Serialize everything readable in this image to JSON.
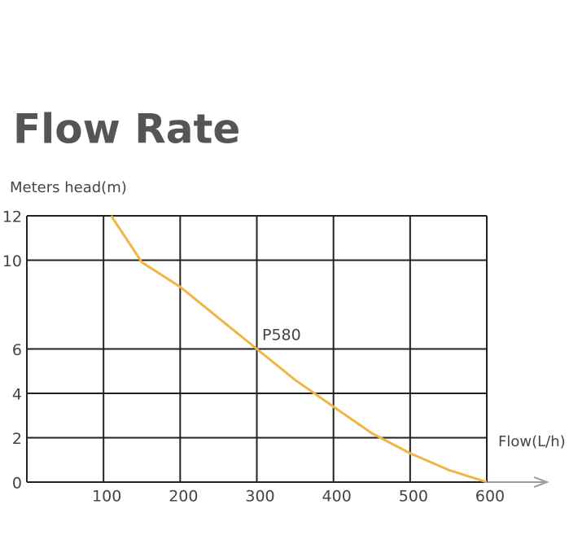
{
  "chart_data": {
    "type": "line",
    "title": "Flow Rate",
    "y_label": "Meters head(m)",
    "x_label": "Flow(L/h)",
    "x": [
      110,
      150,
      200,
      250,
      300,
      350,
      400,
      450,
      500,
      550,
      600
    ],
    "series": [
      {
        "name": "P580",
        "color": "#f0b545",
        "values": [
          12,
          9.9,
          8.8,
          7.4,
          6,
          4.6,
          3.4,
          2.2,
          1.3,
          0.55,
          0
        ]
      }
    ],
    "xlim": [
      0,
      600
    ],
    "ylim": [
      0,
      12
    ],
    "xticks": [
      100,
      200,
      300,
      400,
      500,
      600
    ],
    "yticks": [
      12,
      10,
      6,
      4,
      2,
      0
    ],
    "grid": true
  }
}
